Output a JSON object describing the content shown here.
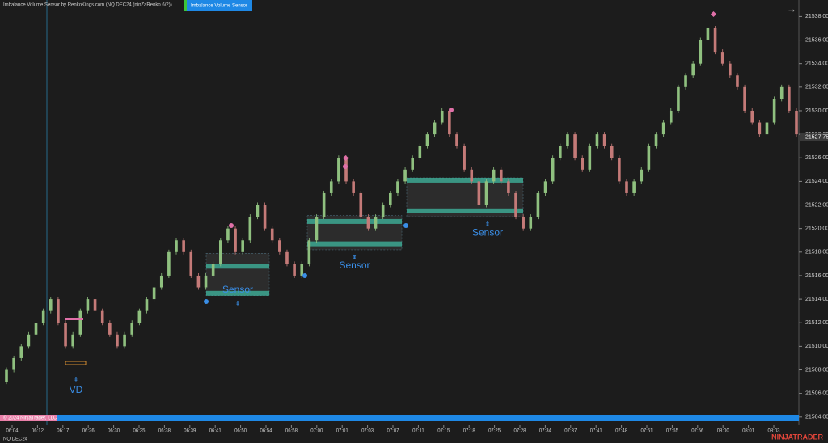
{
  "header": {
    "title": "Imbalance Volume Sensor by RenkoKings.com (NQ DEC24 (ninZaRenko 6/2))",
    "button": "Imbalance Volume Sensor"
  },
  "chart_data": {
    "type": "renko",
    "open": [
      21507,
      21508,
      21509,
      21510,
      21511,
      21512,
      21513,
      21514,
      21512,
      21510,
      21511,
      21513,
      21514,
      21513,
      21512,
      21511,
      21510,
      21511,
      21512,
      21513,
      21514,
      21515,
      21516,
      21518,
      21519,
      21518,
      21516,
      21515,
      21516,
      21517,
      21519,
      21520,
      21518,
      21519,
      21521,
      21522,
      21520,
      21519,
      21518,
      21517,
      21516,
      21517,
      21519,
      21521,
      21523,
      21524,
      21526,
      21524,
      21523,
      21521,
      21520,
      21521,
      21522,
      21523,
      21524,
      21525,
      21526,
      21527,
      21528,
      21529,
      21530,
      21528,
      21527,
      21525,
      21524,
      21522,
      21524,
      21525,
      21524,
      21523,
      21521,
      21520,
      21521,
      21523,
      21524,
      21526,
      21527,
      21528,
      21526,
      21525,
      21527,
      21528,
      21527,
      21526,
      21524,
      21523,
      21524,
      21525,
      21527,
      21528,
      21529,
      21530,
      21532,
      21533,
      21534,
      21536,
      21537,
      21535,
      21534,
      21533,
      21532,
      21530,
      21529,
      21528,
      21529,
      21531,
      21532,
      21530
    ],
    "close": [
      21508,
      21509,
      21510,
      21511,
      21512,
      21513,
      21514,
      21512,
      21510,
      21511,
      21513,
      21514,
      21513,
      21512,
      21511,
      21510,
      21511,
      21512,
      21513,
      21514,
      21515,
      21516,
      21518,
      21519,
      21518,
      21516,
      21515,
      21516,
      21517,
      21519,
      21520,
      21518,
      21519,
      21521,
      21522,
      21520,
      21519,
      21518,
      21517,
      21516,
      21517,
      21519,
      21521,
      21523,
      21524,
      21526,
      21524,
      21523,
      21521,
      21520,
      21521,
      21522,
      21523,
      21524,
      21525,
      21526,
      21527,
      21528,
      21529,
      21530,
      21528,
      21527,
      21525,
      21524,
      21522,
      21524,
      21525,
      21524,
      21523,
      21521,
      21520,
      21521,
      21523,
      21524,
      21526,
      21527,
      21528,
      21526,
      21525,
      21527,
      21528,
      21527,
      21526,
      21524,
      21523,
      21524,
      21525,
      21527,
      21528,
      21529,
      21530,
      21532,
      21533,
      21534,
      21536,
      21537,
      21535,
      21534,
      21533,
      21532,
      21530,
      21529,
      21528,
      21529,
      21531,
      21532,
      21530,
      21528
    ],
    "up_color": "#8fc07f",
    "down_color": "#c47a78",
    "ylim": [
      21503.3,
      21539.4
    ],
    "yticks": [
      {
        "value": 21504,
        "label": "21504.00"
      },
      {
        "value": 21506,
        "label": "21506.00"
      },
      {
        "value": 21508,
        "label": "21508.00"
      },
      {
        "value": 21510,
        "label": "21510.00"
      },
      {
        "value": 21512,
        "label": "21512.00"
      },
      {
        "value": 21514,
        "label": "21514.00"
      },
      {
        "value": 21516,
        "label": "21516.00"
      },
      {
        "value": 21518,
        "label": "21518.00"
      },
      {
        "value": 21520,
        "label": "21520.00"
      },
      {
        "value": 21522,
        "label": "21522.00"
      },
      {
        "value": 21524,
        "label": "21524.00"
      },
      {
        "value": 21526,
        "label": "21526.00"
      },
      {
        "value": 21528,
        "label": "21528.00"
      },
      {
        "value": 21530,
        "label": "21530.00"
      },
      {
        "value": 21532,
        "label": "21532.00"
      },
      {
        "value": 21534,
        "label": "21534.00"
      },
      {
        "value": 21536,
        "label": "21536.00"
      },
      {
        "value": 21538,
        "label": "21538.00"
      }
    ],
    "last_price": {
      "value": 21527.75,
      "label": "21527.75"
    },
    "x_labels": [
      "06:04",
      "06:12",
      "06:17",
      "06:26",
      "06:30",
      "06:35",
      "06:38",
      "06:39",
      "06:41",
      "06:50",
      "06:54",
      "06:58",
      "07:00",
      "07:01",
      "07:03",
      "07:07",
      "07:11",
      "07:15",
      "07:18",
      "07:25",
      "07:28",
      "07:34",
      "07:37",
      "07:41",
      "07:48",
      "07:51",
      "07:55",
      "07:56",
      "08:00",
      "08:01",
      "08:03"
    ],
    "zones": [
      {
        "low": 21514.3,
        "high": 21517.9,
        "bands": [
          21516.8,
          21514.5
        ],
        "label": "Sensor"
      },
      {
        "low": 21518.2,
        "high": 21521.1,
        "bands": [
          21520.6,
          21518.7
        ],
        "label": "Sensor"
      },
      {
        "low": 21521,
        "high": 21524.3,
        "bands": [
          21524.1,
          21521.5
        ],
        "label": "Sensor"
      }
    ],
    "vd_label": "VD"
  },
  "footer": {
    "copyright": "© 2024 NinjaTrader, LLC",
    "instrument": "NQ DEC24",
    "brand": "NINJATRADER"
  }
}
